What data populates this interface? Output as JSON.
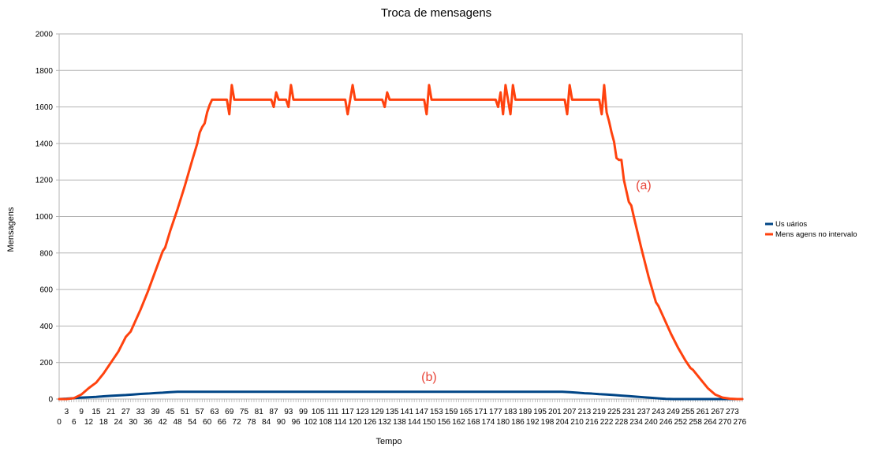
{
  "chart_data": {
    "type": "line",
    "title": "Troca de mensagens",
    "xlabel": "Tempo",
    "ylabel": "Mensagens",
    "ylim": [
      0,
      2000
    ],
    "yticks": [
      0,
      200,
      400,
      600,
      800,
      1000,
      1200,
      1400,
      1600,
      1800,
      2000
    ],
    "xlim": [
      0,
      277
    ],
    "x_tick_labels_step": 3,
    "grid": "horizontal",
    "legend_position": "right",
    "series": [
      {
        "name": "Us uários",
        "color": "#004586",
        "points": [
          [
            0,
            0
          ],
          [
            3,
            2
          ],
          [
            6,
            5
          ],
          [
            9,
            8
          ],
          [
            12,
            10
          ],
          [
            15,
            12
          ],
          [
            18,
            15
          ],
          [
            21,
            18
          ],
          [
            24,
            20
          ],
          [
            27,
            22
          ],
          [
            30,
            25
          ],
          [
            33,
            28
          ],
          [
            36,
            30
          ],
          [
            39,
            33
          ],
          [
            42,
            35
          ],
          [
            45,
            38
          ],
          [
            48,
            40
          ],
          [
            204,
            40
          ],
          [
            207,
            38
          ],
          [
            210,
            35
          ],
          [
            213,
            32
          ],
          [
            216,
            30
          ],
          [
            219,
            27
          ],
          [
            222,
            25
          ],
          [
            225,
            22
          ],
          [
            228,
            19
          ],
          [
            231,
            16
          ],
          [
            234,
            13
          ],
          [
            237,
            10
          ],
          [
            240,
            7
          ],
          [
            243,
            4
          ],
          [
            246,
            1
          ],
          [
            249,
            0
          ],
          [
            277,
            0
          ]
        ]
      },
      {
        "name": "Mens agens no intervalo",
        "color": "#ff420e",
        "points": [
          [
            0,
            0
          ],
          [
            3,
            0
          ],
          [
            6,
            5
          ],
          [
            9,
            25
          ],
          [
            12,
            60
          ],
          [
            14,
            80
          ],
          [
            15,
            90
          ],
          [
            18,
            140
          ],
          [
            21,
            200
          ],
          [
            24,
            260
          ],
          [
            27,
            340
          ],
          [
            29,
            370
          ],
          [
            30,
            400
          ],
          [
            33,
            490
          ],
          [
            36,
            590
          ],
          [
            39,
            700
          ],
          [
            42,
            810
          ],
          [
            43,
            830
          ],
          [
            45,
            920
          ],
          [
            48,
            1040
          ],
          [
            51,
            1170
          ],
          [
            54,
            1310
          ],
          [
            56,
            1400
          ],
          [
            57,
            1460
          ],
          [
            58,
            1490
          ],
          [
            59,
            1510
          ],
          [
            60,
            1570
          ],
          [
            61,
            1610
          ],
          [
            62,
            1640
          ],
          [
            66,
            1640
          ],
          [
            68,
            1640
          ],
          [
            69,
            1560
          ],
          [
            70,
            1720
          ],
          [
            71,
            1640
          ],
          [
            86,
            1640
          ],
          [
            87,
            1600
          ],
          [
            88,
            1680
          ],
          [
            89,
            1640
          ],
          [
            92,
            1640
          ],
          [
            93,
            1600
          ],
          [
            94,
            1720
          ],
          [
            95,
            1640
          ],
          [
            116,
            1640
          ],
          [
            117,
            1560
          ],
          [
            119,
            1720
          ],
          [
            120,
            1640
          ],
          [
            131,
            1640
          ],
          [
            132,
            1600
          ],
          [
            133,
            1680
          ],
          [
            134,
            1640
          ],
          [
            148,
            1640
          ],
          [
            149,
            1560
          ],
          [
            150,
            1720
          ],
          [
            151,
            1640
          ],
          [
            177,
            1640
          ],
          [
            178,
            1600
          ],
          [
            179,
            1680
          ],
          [
            180,
            1560
          ],
          [
            181,
            1720
          ],
          [
            182,
            1640
          ],
          [
            183,
            1560
          ],
          [
            184,
            1720
          ],
          [
            185,
            1640
          ],
          [
            205,
            1640
          ],
          [
            206,
            1560
          ],
          [
            207,
            1720
          ],
          [
            208,
            1640
          ],
          [
            219,
            1640
          ],
          [
            220,
            1560
          ],
          [
            221,
            1720
          ],
          [
            222,
            1570
          ],
          [
            223,
            1520
          ],
          [
            224,
            1460
          ],
          [
            225,
            1410
          ],
          [
            226,
            1320
          ],
          [
            227,
            1310
          ],
          [
            228,
            1310
          ],
          [
            229,
            1200
          ],
          [
            230,
            1140
          ],
          [
            231,
            1080
          ],
          [
            232,
            1060
          ],
          [
            233,
            1000
          ],
          [
            236,
            830
          ],
          [
            239,
            670
          ],
          [
            242,
            530
          ],
          [
            243,
            510
          ],
          [
            245,
            450
          ],
          [
            248,
            360
          ],
          [
            251,
            280
          ],
          [
            254,
            210
          ],
          [
            255,
            190
          ],
          [
            256,
            170
          ],
          [
            257,
            160
          ],
          [
            260,
            110
          ],
          [
            263,
            60
          ],
          [
            266,
            25
          ],
          [
            269,
            8
          ],
          [
            272,
            2
          ],
          [
            275,
            0
          ],
          [
            277,
            0
          ]
        ]
      }
    ],
    "annotations": [
      {
        "text": "(a)",
        "x": 237,
        "y": 1150,
        "color": "#e8463a"
      },
      {
        "text": "(b)",
        "x": 150,
        "y": 100,
        "color": "#e8463a"
      }
    ]
  }
}
